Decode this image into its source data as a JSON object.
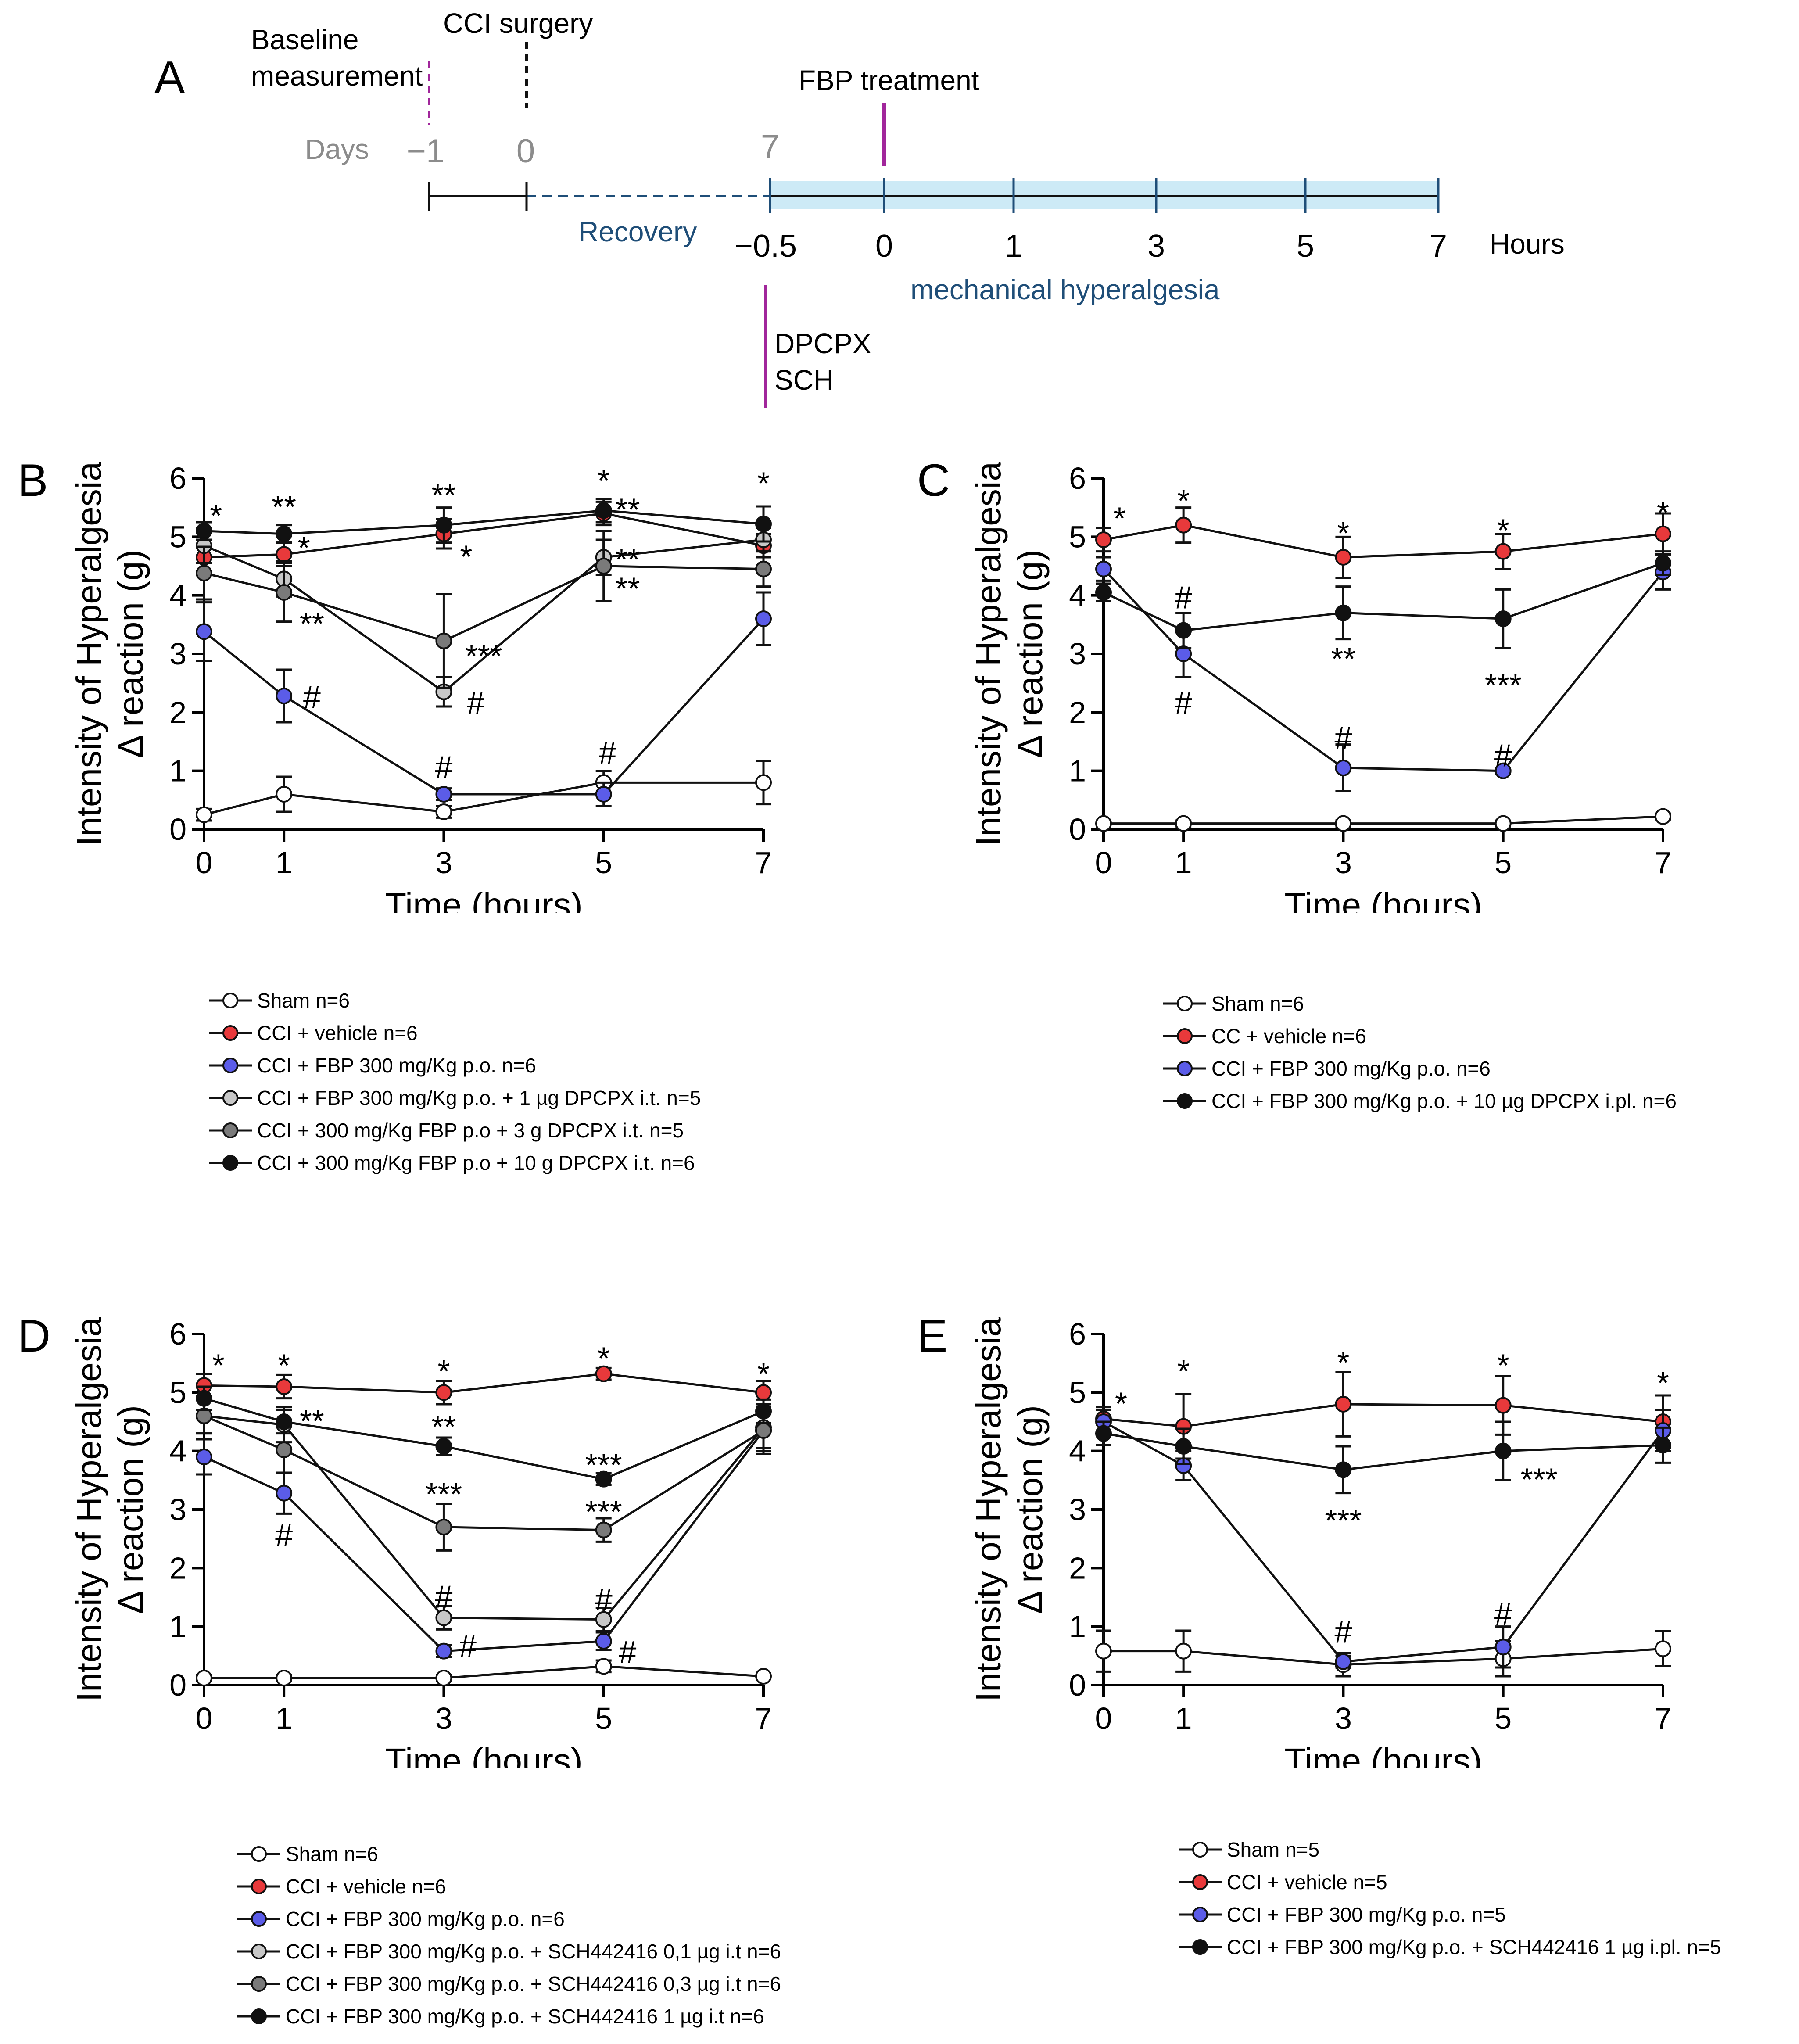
{
  "colors": {
    "sham": "#ffffff",
    "vehicle": "#e8393b",
    "fbp": "#5b5ce8",
    "light_gray": "#c8c8c8",
    "dark_gray": "#7a7a7a",
    "black": "#111111",
    "timeline_purple": "#a1269b",
    "timeline_blue": "#1f4e78",
    "timeline_band": "#cdeaf6",
    "timeline_gray": "#8c8c8c"
  },
  "timeline": {
    "panel_label": "A",
    "baseline_label_line1": "Baseline",
    "baseline_label_line2": "measurement",
    "cci_label": "CCI surgery",
    "fbp_label": "FBP treatment",
    "days_label": "Days",
    "day_ticks": [
      "−1",
      "0",
      "7"
    ],
    "recovery_label": "Recovery",
    "hour_ticks": [
      "−0.5",
      "0",
      "1",
      "3",
      "5",
      "7"
    ],
    "hours_label": "Hours",
    "mech_label": "mechanical hyperalgesia",
    "antagonist_line1": "DPCPX",
    "antagonist_line2": "SCH"
  },
  "chart_data": [
    {
      "panel": "B",
      "type": "line",
      "xlabel": "Time (hours)",
      "ylabel_line1": "Intensity of Hyperalgesia",
      "ylabel_line2": "Δ reaction (g)",
      "x": [
        0,
        1,
        3,
        5,
        7
      ],
      "xlim": [
        0,
        7
      ],
      "ylim": [
        0,
        6
      ],
      "yticks": [
        "0",
        "1",
        "2",
        "3",
        "4",
        "5",
        "6"
      ],
      "xticks": [
        "0",
        "1",
        "3",
        "5",
        "7"
      ],
      "series": [
        {
          "name": "Sham n=6",
          "color_key": "sham",
          "values": [
            0.25,
            0.6,
            0.3,
            0.8,
            0.8
          ],
          "errors": [
            0.1,
            0.3,
            0.1,
            0.2,
            0.37
          ]
        },
        {
          "name": "CCI + vehicle n=6",
          "color_key": "vehicle",
          "values": [
            4.65,
            4.7,
            5.05,
            5.4,
            4.85
          ],
          "errors": [
            0.3,
            0.2,
            0.25,
            0.2,
            0.2
          ]
        },
        {
          "name": "CCI + FBP 300 mg/Kg p.o. n=6",
          "color_key": "fbp",
          "values": [
            3.38,
            2.28,
            0.6,
            0.6,
            3.6
          ],
          "errors": [
            0.5,
            0.45,
            0.1,
            0.2,
            0.45
          ]
        },
        {
          "name": "CCI + FBP 300 mg/Kg p.o. + 1 µg DPCPX i.t. n=5",
          "color_key": "light_gray",
          "values": [
            4.85,
            4.28,
            2.35,
            4.65,
            4.95
          ],
          "errors": [
            0.3,
            0.3,
            0.25,
            0.3,
            0.2
          ]
        },
        {
          "name": "CCI + 300 mg/Kg FBP p.o + 3 g DPCPX i.t. n=5",
          "color_key": "dark_gray",
          "values": [
            4.38,
            4.05,
            3.22,
            4.5,
            4.45
          ],
          "errors": [
            0.45,
            0.5,
            0.8,
            0.6,
            0.3
          ]
        },
        {
          "name": "CCI + 300 mg/Kg FBP p.o + 10 g DPCPX i.t. n=6",
          "color_key": "black",
          "values": [
            5.1,
            5.05,
            5.2,
            5.45,
            5.22
          ],
          "errors": [
            0.15,
            0.15,
            0.3,
            0.2,
            0.3
          ]
        }
      ],
      "annotations": [
        {
          "text": "*",
          "x": 0.15,
          "y": 5.4
        },
        {
          "text": "**",
          "x": 1.0,
          "y": 5.55
        },
        {
          "text": "*",
          "x": 1.25,
          "y": 4.85
        },
        {
          "text": "**",
          "x": 1.35,
          "y": 3.55
        },
        {
          "text": "#",
          "x": 1.35,
          "y": 2.3
        },
        {
          "text": "**",
          "x": 3.0,
          "y": 5.75
        },
        {
          "text": "*",
          "x": 3.28,
          "y": 4.7
        },
        {
          "text": "***",
          "x": 3.5,
          "y": 3.0
        },
        {
          "text": "#",
          "x": 3.4,
          "y": 2.2
        },
        {
          "text": "#",
          "x": 3.0,
          "y": 1.1
        },
        {
          "text": "*",
          "x": 5.0,
          "y": 6.0
        },
        {
          "text": "**",
          "x": 5.3,
          "y": 5.5
        },
        {
          "text": "**",
          "x": 5.3,
          "y": 4.65
        },
        {
          "text": "**",
          "x": 5.3,
          "y": 4.15
        },
        {
          "text": "#",
          "x": 5.05,
          "y": 1.35
        },
        {
          "text": "*",
          "x": 7.0,
          "y": 5.95
        }
      ]
    },
    {
      "panel": "C",
      "type": "line",
      "xlabel": "Time (hours)",
      "ylabel_line1": "Intensity of Hyperalgesia",
      "ylabel_line2": "Δ reaction (g)",
      "x": [
        0,
        1,
        3,
        5,
        7
      ],
      "xlim": [
        0,
        7
      ],
      "ylim": [
        0,
        6
      ],
      "yticks": [
        "0",
        "1",
        "2",
        "3",
        "4",
        "5",
        "6"
      ],
      "xticks": [
        "0",
        "1",
        "3",
        "5",
        "7"
      ],
      "series": [
        {
          "name": "Sham n=6",
          "color_key": "sham",
          "values": [
            0.1,
            0.1,
            0.1,
            0.1,
            0.22
          ],
          "errors": [
            0.05,
            0.05,
            0.05,
            0.05,
            0.05
          ]
        },
        {
          "name": "CC + vehicle n=6",
          "color_key": "vehicle",
          "values": [
            4.95,
            5.2,
            4.65,
            4.75,
            5.05
          ],
          "errors": [
            0.2,
            0.3,
            0.35,
            0.3,
            0.35
          ]
        },
        {
          "name": "CCI +  FBP 300 mg/Kg p.o. n=6",
          "color_key": "fbp",
          "values": [
            4.45,
            3.0,
            1.05,
            1.0,
            4.4
          ],
          "errors": [
            0.2,
            0.4,
            0.4,
            0.05,
            0.3
          ]
        },
        {
          "name": "CCI +  FBP 300 mg/Kg p.o. + 10 µg DPCPX i.pl. n=6",
          "color_key": "black",
          "values": [
            4.05,
            3.4,
            3.7,
            3.6,
            4.55
          ],
          "errors": [
            0.15,
            0.3,
            0.45,
            0.5,
            0.2
          ]
        }
      ],
      "annotations": [
        {
          "text": "*",
          "x": 0.2,
          "y": 5.35
        },
        {
          "text": "*",
          "x": 1.0,
          "y": 5.65
        },
        {
          "text": "#",
          "x": 1.0,
          "y": 4.0
        },
        {
          "text": "#",
          "x": 1.0,
          "y": 2.2
        },
        {
          "text": "*",
          "x": 3.0,
          "y": 5.1
        },
        {
          "text": "**",
          "x": 3.0,
          "y": 2.95
        },
        {
          "text": "#",
          "x": 3.0,
          "y": 1.6
        },
        {
          "text": "*",
          "x": 5.0,
          "y": 5.15
        },
        {
          "text": "***",
          "x": 5.0,
          "y": 2.5
        },
        {
          "text": "#",
          "x": 5.0,
          "y": 1.3
        },
        {
          "text": "*",
          "x": 7.0,
          "y": 5.45
        }
      ]
    },
    {
      "panel": "D",
      "type": "line",
      "xlabel": "Time (hours)",
      "ylabel_line1": "Intensity of Hyperalgesia",
      "ylabel_line2": "Δ reaction (g)",
      "x": [
        0,
        1,
        3,
        5,
        7
      ],
      "xlim": [
        0,
        7
      ],
      "ylim": [
        0,
        6
      ],
      "yticks": [
        "0",
        "1",
        "2",
        "3",
        "4",
        "5",
        "6"
      ],
      "xticks": [
        "0",
        "1",
        "3",
        "5",
        "7"
      ],
      "series": [
        {
          "name": "Sham n=6",
          "color_key": "sham",
          "values": [
            0.12,
            0.12,
            0.12,
            0.32,
            0.15
          ],
          "errors": [
            0.05,
            0.05,
            0.05,
            0.1,
            0.05
          ]
        },
        {
          "name": "CCI + vehicle n=6",
          "color_key": "vehicle",
          "values": [
            5.12,
            5.1,
            5.0,
            5.32,
            5.0
          ],
          "errors": [
            0.2,
            0.2,
            0.2,
            0.1,
            0.2
          ]
        },
        {
          "name": "CCI + FBP 300 mg/Kg p.o. n=6",
          "color_key": "fbp",
          "values": [
            3.9,
            3.28,
            0.58,
            0.75,
            4.35
          ],
          "errors": [
            0.3,
            0.35,
            0.1,
            0.15,
            0.3
          ]
        },
        {
          "name": "CCI + FBP 300 mg/Kg p.o. + SCH442416 0,1 µg i.t n=6",
          "color_key": "light_gray",
          "values": [
            4.6,
            4.45,
            1.15,
            1.12,
            4.4
          ],
          "errors": [
            0.3,
            0.3,
            0.2,
            0.2,
            0.4
          ]
        },
        {
          "name": "CCI + FBP 300 mg/Kg p.o. + SCH442416 0,3 µg i.t n=6",
          "color_key": "dark_gray",
          "values": [
            4.6,
            4.02,
            2.7,
            2.65,
            4.35
          ],
          "errors": [
            0.3,
            0.4,
            0.4,
            0.2,
            0.4
          ]
        },
        {
          "name": "CCI + FBP 300 mg/Kg p.o. + SCH442416 1 µg i.t n=6",
          "color_key": "black",
          "values": [
            4.9,
            4.5,
            4.08,
            3.52,
            4.68
          ],
          "errors": [
            0.2,
            0.2,
            0.15,
            0.1,
            0.2
          ]
        }
      ],
      "annotations": [
        {
          "text": "*",
          "x": 0.18,
          "y": 5.5
        },
        {
          "text": "*",
          "x": 1.0,
          "y": 5.5
        },
        {
          "text": "**",
          "x": 1.35,
          "y": 4.55
        },
        {
          "text": "#",
          "x": 1.0,
          "y": 2.6
        },
        {
          "text": "*",
          "x": 3.0,
          "y": 5.4
        },
        {
          "text": "**",
          "x": 3.0,
          "y": 4.45
        },
        {
          "text": "***",
          "x": 3.0,
          "y": 3.3
        },
        {
          "text": "#",
          "x": 3.0,
          "y": 1.55
        },
        {
          "text": "#",
          "x": 3.3,
          "y": 0.7
        },
        {
          "text": "*",
          "x": 5.0,
          "y": 5.62
        },
        {
          "text": "***",
          "x": 5.0,
          "y": 3.8
        },
        {
          "text": "***",
          "x": 5.0,
          "y": 3.0
        },
        {
          "text": "#",
          "x": 5.0,
          "y": 1.5
        },
        {
          "text": "#",
          "x": 5.3,
          "y": 0.6
        },
        {
          "text": "*",
          "x": 7.0,
          "y": 5.35
        }
      ]
    },
    {
      "panel": "E",
      "type": "line",
      "xlabel": "Time (hours)",
      "ylabel_line1": "Intensity of Hyperalgesia",
      "ylabel_line2": "Δ reaction (g)",
      "x": [
        0,
        1,
        3,
        5,
        7
      ],
      "xlim": [
        0,
        7
      ],
      "ylim": [
        0,
        6
      ],
      "yticks": [
        "0",
        "1",
        "2",
        "3",
        "4",
        "5",
        "6"
      ],
      "xticks": [
        "0",
        "1",
        "3",
        "5",
        "7"
      ],
      "series": [
        {
          "name": "Sham n=5",
          "color_key": "sham",
          "values": [
            0.58,
            0.58,
            0.35,
            0.45,
            0.62
          ],
          "errors": [
            0.35,
            0.35,
            0.2,
            0.3,
            0.3
          ]
        },
        {
          "name": "CCI + vehicle n=5",
          "color_key": "vehicle",
          "values": [
            4.55,
            4.42,
            4.8,
            4.78,
            4.5
          ],
          "errors": [
            0.2,
            0.55,
            0.55,
            0.5,
            0.45
          ]
        },
        {
          "name": "CCI + FBP 300 mg/Kg p.o. n=5",
          "color_key": "fbp",
          "values": [
            4.5,
            3.75,
            0.4,
            0.65,
            4.35
          ],
          "errors": [
            0.2,
            0.25,
            0.1,
            0.35,
            0.35
          ]
        },
        {
          "name": "CCI + FBP 300 mg/Kg p.o. + SCH442416 1 µg i.pl. n=5",
          "color_key": "black",
          "values": [
            4.3,
            4.08,
            3.68,
            4.0,
            4.1
          ],
          "errors": [
            0.2,
            0.3,
            0.4,
            0.5,
            0.3
          ]
        }
      ],
      "annotations": [
        {
          "text": "*",
          "x": 0.22,
          "y": 4.85
        },
        {
          "text": "*",
          "x": 1.0,
          "y": 5.4
        },
        {
          "text": "*",
          "x": 3.0,
          "y": 5.55
        },
        {
          "text": "***",
          "x": 3.0,
          "y": 2.85
        },
        {
          "text": "#",
          "x": 3.0,
          "y": 0.95
        },
        {
          "text": "*",
          "x": 5.0,
          "y": 5.5
        },
        {
          "text": "***",
          "x": 5.45,
          "y": 3.55
        },
        {
          "text": "#",
          "x": 5.0,
          "y": 1.25
        },
        {
          "text": "*",
          "x": 7.0,
          "y": 5.2
        }
      ]
    }
  ]
}
